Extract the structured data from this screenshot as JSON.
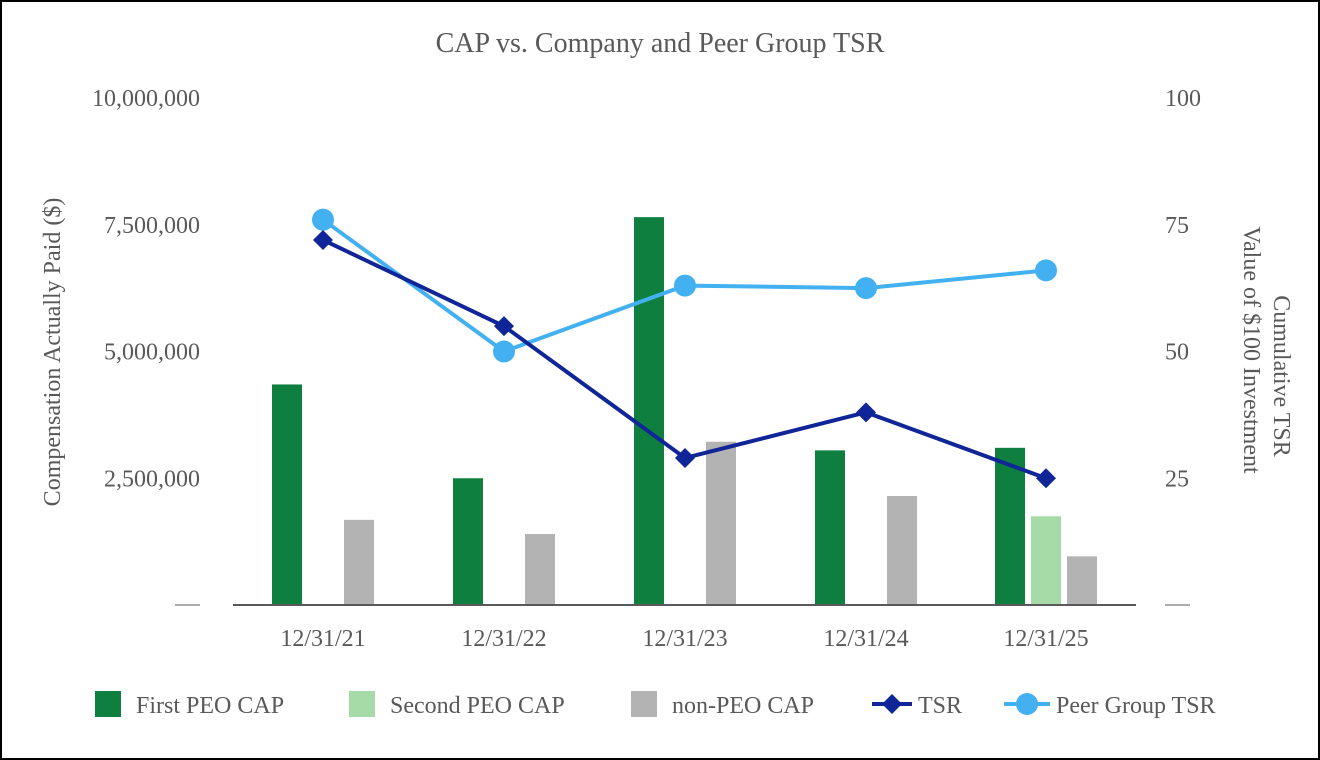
{
  "chart_data": {
    "type": "bar",
    "title": "CAP vs. Company and Peer Group TSR",
    "categories": [
      "12/31/21",
      "12/31/22",
      "12/31/23",
      "12/31/24",
      "12/31/25"
    ],
    "ylabel": "Compensation Actually Paid ($)",
    "ylabel_right_line1": "Cumulative TSR",
    "ylabel_right_line2": "Value of $100 Investment",
    "ylim": [
      0,
      10000000
    ],
    "ylim_right": [
      0,
      100
    ],
    "left_ticks": [
      {
        "value": 0,
        "label": ""
      },
      {
        "value": 2500000,
        "label": "2,500,000"
      },
      {
        "value": 5000000,
        "label": "5,000,000"
      },
      {
        "value": 7500000,
        "label": "7,500,000"
      },
      {
        "value": 10000000,
        "label": "10,000,000"
      }
    ],
    "right_ticks": [
      {
        "value": 0,
        "label": ""
      },
      {
        "value": 25,
        "label": "25"
      },
      {
        "value": 50,
        "label": "50"
      },
      {
        "value": 75,
        "label": "75"
      },
      {
        "value": 100,
        "label": "100"
      }
    ],
    "bar_series": [
      {
        "name": "First PEO CAP",
        "color": "#0f7f3f",
        "values": [
          4350000,
          2500000,
          7650000,
          3050000,
          3100000
        ]
      },
      {
        "name": "Second PEO CAP",
        "color": "#a6dba7",
        "values": [
          null,
          null,
          null,
          null,
          1750000
        ]
      },
      {
        "name": "non-PEO CAP",
        "color": "#b3b3b3",
        "values": [
          1680000,
          1400000,
          3220000,
          2150000,
          960000
        ]
      }
    ],
    "line_series": [
      {
        "name": "TSR",
        "color": "#0f2598",
        "marker": "diamond",
        "values": [
          72,
          55,
          29,
          38,
          25
        ]
      },
      {
        "name": "Peer Group TSR",
        "color": "#43b0f1",
        "marker": "circle",
        "values": [
          76,
          50,
          63,
          62.5,
          66
        ]
      }
    ],
    "legend_position": "bottom"
  }
}
